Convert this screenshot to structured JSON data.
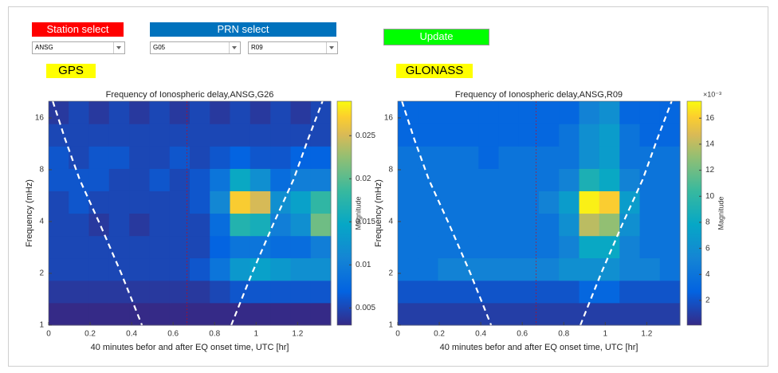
{
  "controls": {
    "station_label": "Station select",
    "station_color": "#ff0000",
    "station_value": "ANSG",
    "prn_label": "PRN select",
    "prn_color": "#0072bd",
    "gps_prn": "G05",
    "glonass_prn": "R09",
    "update": "Update",
    "update_color": "#00ff00"
  },
  "panels": {
    "gps": "GPS",
    "glonass": "GLONASS",
    "color": "#ffff00"
  },
  "chart_data": [
    {
      "type": "heatmap",
      "title": "Frequency of Ionospheric delay,ANSG,G26",
      "xlabel": "40 minutes befor and after EQ onset time, UTC [hr]",
      "ylabel": "Frequency (mHz)",
      "colorbar_label": "Magnitude",
      "colormap": "parula",
      "yscale": "log",
      "xlim": [
        0,
        1.36
      ],
      "xticks": [
        0,
        0.2,
        0.4,
        0.6,
        0.8,
        1,
        1.2
      ],
      "ylim": [
        1,
        20
      ],
      "yticks": [
        1,
        2,
        4,
        8,
        16
      ],
      "clim": [
        0.003,
        0.029
      ],
      "cticks": [
        0.005,
        0.01,
        0.015,
        0.02,
        0.025
      ],
      "xbins": [
        0,
        0.097,
        0.194,
        0.291,
        0.389,
        0.486,
        0.583,
        0.68,
        0.777,
        0.874,
        0.971,
        1.069,
        1.166,
        1.263,
        1.36
      ],
      "ybins": [
        1,
        1.35,
        1.82,
        2.46,
        3.31,
        4.47,
        6.03,
        8.13,
        10.97,
        14.8,
        20
      ],
      "z": [
        [
          0.003,
          0.003,
          0.003,
          0.003,
          0.003,
          0.003,
          0.003,
          0.003,
          0.003,
          0.003,
          0.003,
          0.003,
          0.003,
          0.003
        ],
        [
          0.004,
          0.004,
          0.004,
          0.004,
          0.004,
          0.004,
          0.004,
          0.004,
          0.005,
          0.006,
          0.006,
          0.006,
          0.006,
          0.006
        ],
        [
          0.005,
          0.005,
          0.005,
          0.005,
          0.005,
          0.005,
          0.005,
          0.006,
          0.009,
          0.013,
          0.014,
          0.013,
          0.012,
          0.012
        ],
        [
          0.005,
          0.005,
          0.005,
          0.005,
          0.005,
          0.005,
          0.005,
          0.005,
          0.007,
          0.009,
          0.009,
          0.008,
          0.008,
          0.01
        ],
        [
          0.005,
          0.005,
          0.004,
          0.005,
          0.004,
          0.005,
          0.005,
          0.005,
          0.008,
          0.017,
          0.016,
          0.01,
          0.012,
          0.021
        ],
        [
          0.005,
          0.006,
          0.005,
          0.005,
          0.005,
          0.005,
          0.005,
          0.006,
          0.011,
          0.027,
          0.025,
          0.012,
          0.014,
          0.018
        ],
        [
          0.006,
          0.006,
          0.006,
          0.005,
          0.005,
          0.006,
          0.005,
          0.006,
          0.009,
          0.015,
          0.012,
          0.008,
          0.01,
          0.01
        ],
        [
          0.006,
          0.005,
          0.006,
          0.006,
          0.005,
          0.005,
          0.006,
          0.005,
          0.006,
          0.007,
          0.006,
          0.006,
          0.007,
          0.007
        ],
        [
          0.005,
          0.005,
          0.005,
          0.005,
          0.005,
          0.005,
          0.005,
          0.005,
          0.005,
          0.005,
          0.005,
          0.005,
          0.005,
          0.005
        ],
        [
          0.004,
          0.005,
          0.004,
          0.005,
          0.004,
          0.005,
          0.004,
          0.005,
          0.004,
          0.005,
          0.004,
          0.005,
          0.004,
          0.005
        ]
      ],
      "coi_x": [
        0.02,
        0.08,
        0.15,
        0.25,
        0.35,
        0.45,
        null,
        0.88,
        0.98,
        1.08,
        1.18,
        1.25,
        1.32
      ],
      "coi_y": [
        20,
        12,
        7,
        3.8,
        2,
        1,
        null,
        1,
        2,
        3.8,
        7,
        12,
        20
      ],
      "onset_x": 0.667
    },
    {
      "type": "heatmap",
      "title": "Frequency of Ionospheric delay,ANSG,R09",
      "xlabel": "40 minutes befor and after EQ onset time, UTC [hr]",
      "ylabel": "Frequency (mHz)",
      "colorbar_label": "Magnitude",
      "colorbar_exponent": "×10⁻³",
      "colormap": "parula",
      "yscale": "log",
      "xlim": [
        0,
        1.36
      ],
      "xticks": [
        0,
        0.2,
        0.4,
        0.6,
        0.8,
        1,
        1.2
      ],
      "ylim": [
        1,
        20
      ],
      "yticks": [
        1,
        2,
        4,
        8,
        16
      ],
      "clim": [
        0.0001,
        0.0173
      ],
      "cticks": [
        {
          "value": 0.002,
          "label": "2"
        },
        {
          "value": 0.004,
          "label": "4"
        },
        {
          "value": 0.006,
          "label": "6"
        },
        {
          "value": 0.008,
          "label": "8"
        },
        {
          "value": 0.01,
          "label": "10"
        },
        {
          "value": 0.012,
          "label": "12"
        },
        {
          "value": 0.014,
          "label": "14"
        },
        {
          "value": 0.016,
          "label": "16"
        }
      ],
      "xbins": [
        0,
        0.097,
        0.194,
        0.291,
        0.389,
        0.486,
        0.583,
        0.68,
        0.777,
        0.874,
        0.971,
        1.069,
        1.166,
        1.263,
        1.36
      ],
      "ybins": [
        1,
        1.35,
        1.82,
        2.46,
        3.31,
        4.47,
        6.03,
        8.13,
        10.97,
        14.8,
        20
      ],
      "z": [
        [
          0.001,
          0.001,
          0.001,
          0.001,
          0.001,
          0.001,
          0.001,
          0.001,
          0.001,
          0.001,
          0.001,
          0.001,
          0.001,
          0.001
        ],
        [
          0.002,
          0.002,
          0.002,
          0.002,
          0.002,
          0.002,
          0.002,
          0.002,
          0.002,
          0.003,
          0.003,
          0.002,
          0.002,
          0.002
        ],
        [
          0.004,
          0.004,
          0.005,
          0.005,
          0.005,
          0.005,
          0.005,
          0.005,
          0.006,
          0.006,
          0.006,
          0.005,
          0.005,
          0.004
        ],
        [
          0.004,
          0.004,
          0.004,
          0.004,
          0.004,
          0.004,
          0.004,
          0.004,
          0.005,
          0.008,
          0.008,
          0.005,
          0.004,
          0.004
        ],
        [
          0.004,
          0.004,
          0.004,
          0.004,
          0.004,
          0.004,
          0.004,
          0.004,
          0.006,
          0.014,
          0.013,
          0.006,
          0.004,
          0.004
        ],
        [
          0.004,
          0.004,
          0.004,
          0.004,
          0.004,
          0.004,
          0.004,
          0.005,
          0.007,
          0.017,
          0.016,
          0.007,
          0.004,
          0.004
        ],
        [
          0.004,
          0.004,
          0.004,
          0.004,
          0.004,
          0.004,
          0.004,
          0.004,
          0.005,
          0.009,
          0.008,
          0.005,
          0.004,
          0.004
        ],
        [
          0.004,
          0.004,
          0.004,
          0.004,
          0.003,
          0.004,
          0.004,
          0.004,
          0.004,
          0.006,
          0.007,
          0.004,
          0.004,
          0.004
        ],
        [
          0.003,
          0.003,
          0.003,
          0.003,
          0.003,
          0.003,
          0.003,
          0.003,
          0.004,
          0.006,
          0.007,
          0.004,
          0.003,
          0.003
        ],
        [
          0.003,
          0.003,
          0.003,
          0.003,
          0.003,
          0.003,
          0.003,
          0.003,
          0.003,
          0.005,
          0.006,
          0.003,
          0.003,
          0.003
        ]
      ],
      "coi_x": [
        0.02,
        0.08,
        0.15,
        0.25,
        0.35,
        0.45,
        null,
        0.88,
        0.98,
        1.08,
        1.18,
        1.25,
        1.32
      ],
      "coi_y": [
        20,
        12,
        7,
        3.8,
        2,
        1,
        null,
        1,
        2,
        3.8,
        7,
        12,
        20
      ],
      "onset_x": 0.667
    }
  ]
}
